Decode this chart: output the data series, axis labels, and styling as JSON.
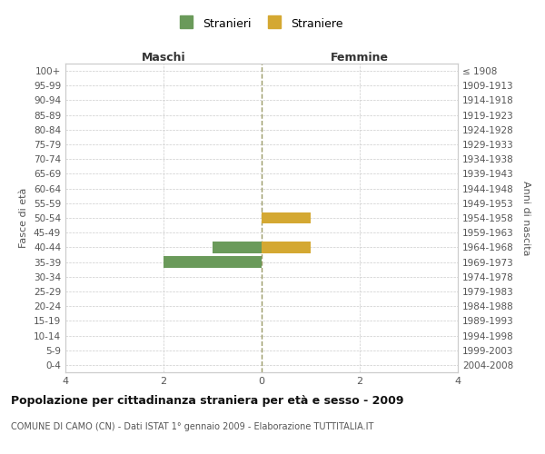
{
  "age_groups": [
    "100+",
    "95-99",
    "90-94",
    "85-89",
    "80-84",
    "75-79",
    "70-74",
    "65-69",
    "60-64",
    "55-59",
    "50-54",
    "45-49",
    "40-44",
    "35-39",
    "30-34",
    "25-29",
    "20-24",
    "15-19",
    "10-14",
    "5-9",
    "0-4"
  ],
  "birth_years": [
    "≤ 1908",
    "1909-1913",
    "1914-1918",
    "1919-1923",
    "1924-1928",
    "1929-1933",
    "1934-1938",
    "1939-1943",
    "1944-1948",
    "1949-1953",
    "1954-1958",
    "1959-1963",
    "1964-1968",
    "1969-1973",
    "1974-1978",
    "1979-1983",
    "1984-1988",
    "1989-1993",
    "1994-1998",
    "1999-2003",
    "2004-2008"
  ],
  "stranieri_values": [
    0,
    0,
    0,
    0,
    0,
    0,
    0,
    0,
    0,
    0,
    0,
    0,
    -1,
    -2,
    0,
    0,
    0,
    0,
    0,
    0,
    0
  ],
  "straniere_values": [
    0,
    0,
    0,
    0,
    0,
    0,
    0,
    0,
    0,
    0,
    1,
    0,
    1,
    0,
    0,
    0,
    0,
    0,
    0,
    0,
    0
  ],
  "stranieri_color": "#6a9a5a",
  "straniere_color": "#d4a832",
  "xlim": [
    -4,
    4
  ],
  "xticks": [
    -4,
    -2,
    0,
    2,
    4
  ],
  "xtick_labels": [
    "4",
    "2",
    "0",
    "2",
    "4"
  ],
  "xlabel_left": "Maschi",
  "xlabel_right": "Femmine",
  "ylabel_left": "Fasce di età",
  "ylabel_right": "Anni di nascita",
  "legend_stranieri": "Stranieri",
  "legend_straniere": "Straniere",
  "title": "Popolazione per cittadinanza straniera per età e sesso - 2009",
  "subtitle": "COMUNE DI CAMO (CN) - Dati ISTAT 1° gennaio 2009 - Elaborazione TUTTITALIA.IT",
  "center_line_color": "#999966",
  "grid_color": "#cccccc",
  "background_color": "#ffffff",
  "bar_height": 0.8
}
